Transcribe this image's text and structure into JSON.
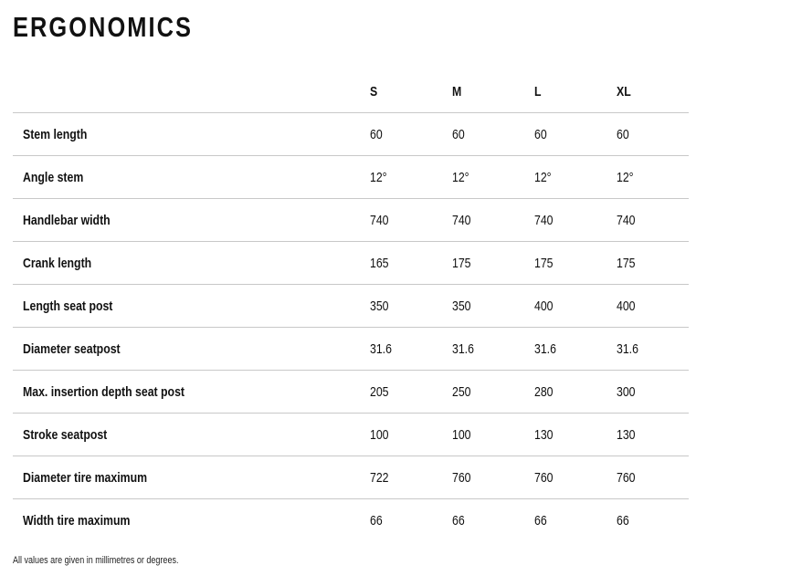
{
  "title": "ERGONOMICS",
  "table": {
    "columns": [
      "S",
      "M",
      "L",
      "XL"
    ],
    "rows": [
      {
        "label": "Stem length",
        "values": [
          "60",
          "60",
          "60",
          "60"
        ]
      },
      {
        "label": "Angle stem",
        "values": [
          "12°",
          "12°",
          "12°",
          "12°"
        ]
      },
      {
        "label": "Handlebar width",
        "values": [
          "740",
          "740",
          "740",
          "740"
        ]
      },
      {
        "label": "Crank length",
        "values": [
          "165",
          "175",
          "175",
          "175"
        ]
      },
      {
        "label": "Length seat post",
        "values": [
          "350",
          "350",
          "400",
          "400"
        ]
      },
      {
        "label": "Diameter seatpost",
        "values": [
          "31.6",
          "31.6",
          "31.6",
          "31.6"
        ]
      },
      {
        "label": "Max. insertion depth seat post",
        "values": [
          "205",
          "250",
          "280",
          "300"
        ]
      },
      {
        "label": "Stroke seatpost",
        "values": [
          "100",
          "100",
          "130",
          "130"
        ]
      },
      {
        "label": "Diameter tire maximum",
        "values": [
          "722",
          "760",
          "760",
          "760"
        ]
      },
      {
        "label": "Width tire maximum",
        "values": [
          "66",
          "66",
          "66",
          "66"
        ]
      }
    ]
  },
  "note": "All values are given in millimetres or degrees."
}
